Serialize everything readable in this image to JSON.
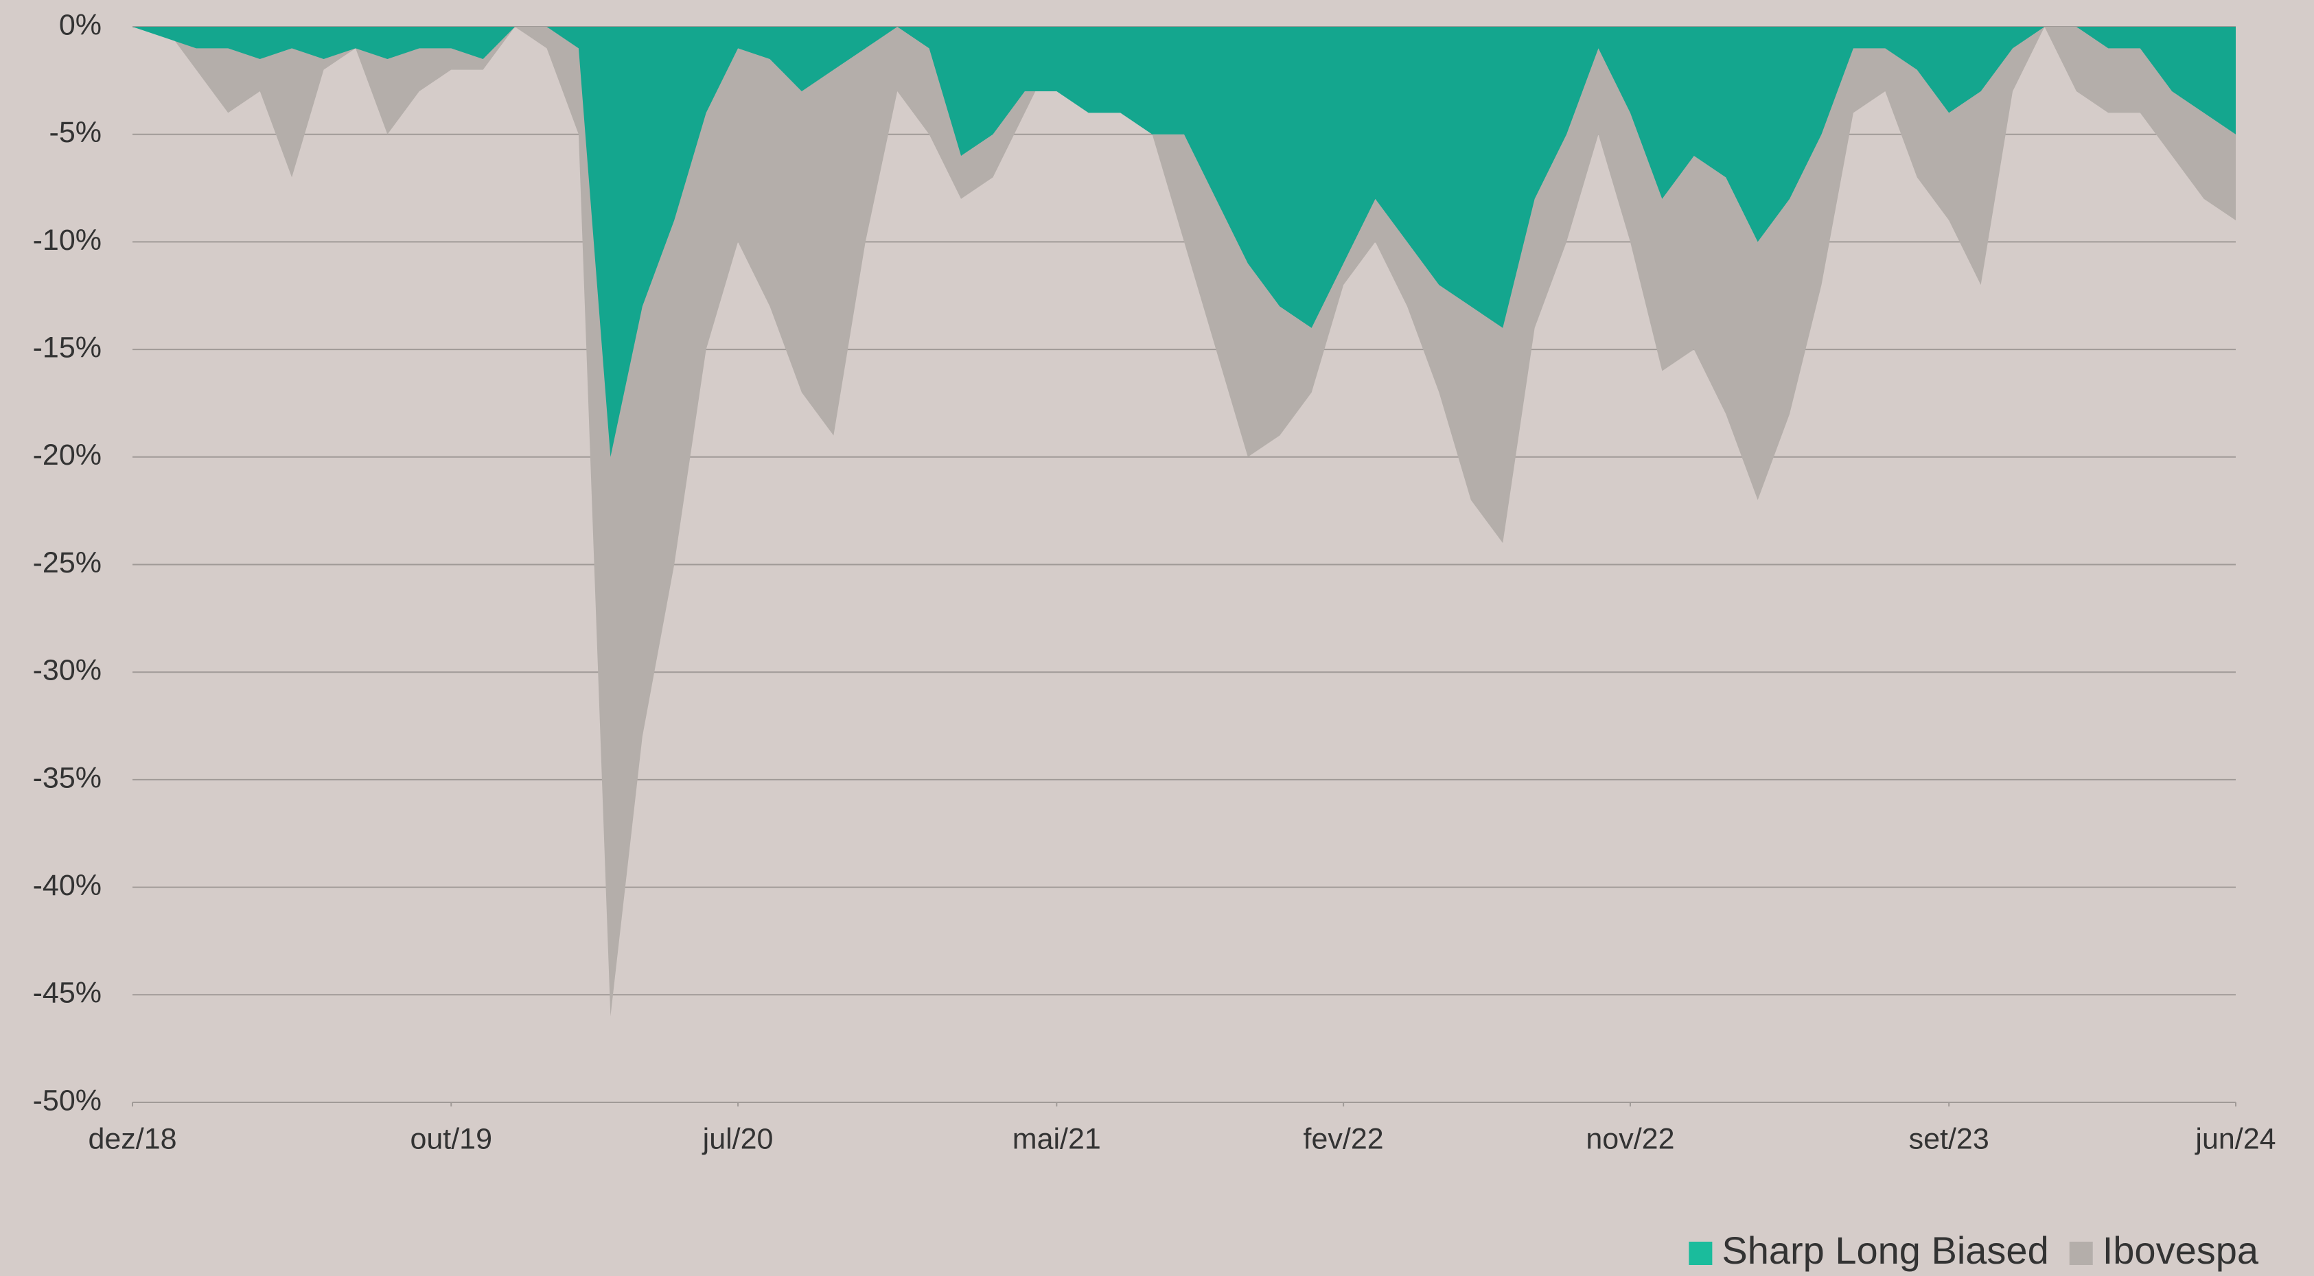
{
  "chart_data": {
    "type": "area",
    "x": [
      "2018-12",
      "2019-01",
      "2019-02",
      "2019-03",
      "2019-04",
      "2019-05",
      "2019-06",
      "2019-07",
      "2019-08",
      "2019-09",
      "2019-10",
      "2019-11",
      "2019-12",
      "2020-01",
      "2020-02",
      "2020-03",
      "2020-04",
      "2020-05",
      "2020-06",
      "2020-07",
      "2020-08",
      "2020-09",
      "2020-10",
      "2020-11",
      "2020-12",
      "2021-01",
      "2021-02",
      "2021-03",
      "2021-04",
      "2021-05",
      "2021-06",
      "2021-07",
      "2021-08",
      "2021-09",
      "2021-10",
      "2021-11",
      "2021-12",
      "2022-01",
      "2022-02",
      "2022-03",
      "2022-04",
      "2022-05",
      "2022-06",
      "2022-07",
      "2022-08",
      "2022-09",
      "2022-10",
      "2022-11",
      "2022-12",
      "2023-01",
      "2023-02",
      "2023-03",
      "2023-04",
      "2023-05",
      "2023-06",
      "2023-07",
      "2023-08",
      "2023-09",
      "2023-10",
      "2023-11",
      "2023-12",
      "2024-01",
      "2024-02",
      "2024-03",
      "2024-04",
      "2024-05",
      "2024-06"
    ],
    "series": [
      {
        "name": "Ibovespa",
        "color": "#b4aeaa",
        "legend_color": "#b4aeaa",
        "values": [
          0,
          0,
          -2,
          -4,
          -3,
          -7,
          -2,
          -1,
          -5,
          -3,
          -2,
          -2,
          0,
          -1,
          -5,
          -46,
          -33,
          -25,
          -15,
          -10,
          -13,
          -17,
          -19,
          -10,
          -3,
          -5,
          -8,
          -7,
          -4,
          -1,
          0,
          -3,
          -5,
          -10,
          -15,
          -20,
          -19,
          -17,
          -12,
          -10,
          -13,
          -17,
          -22,
          -24,
          -14,
          -10,
          -5,
          -10,
          -16,
          -15,
          -18,
          -22,
          -18,
          -12,
          -4,
          -3,
          -7,
          -9,
          -12,
          -3,
          0,
          -3,
          -4,
          -4,
          -6,
          -8,
          -9
        ]
      },
      {
        "name": "Sharp Long Biased",
        "color": "#14a68e",
        "legend_color": "#1abc9c",
        "values": [
          0,
          -0.5,
          -1,
          -1,
          -1.5,
          -1,
          -1.5,
          -1,
          -1.5,
          -1,
          -1,
          -1.5,
          0,
          0,
          -1,
          -20,
          -13,
          -9,
          -4,
          -1,
          -1.5,
          -3,
          -2,
          -1,
          0,
          -1,
          -6,
          -5,
          -3,
          -3,
          -4,
          -4,
          -5,
          -5,
          -8,
          -11,
          -13,
          -14,
          -11,
          -8,
          -10,
          -12,
          -13,
          -14,
          -8,
          -5,
          -1,
          -4,
          -8,
          -6,
          -7,
          -10,
          -8,
          -5,
          -1,
          -1,
          -2,
          -4,
          -3,
          -1,
          0,
          0,
          -1,
          -1,
          -3,
          -4,
          -5
        ]
      }
    ],
    "legend_order": [
      1,
      0
    ],
    "ylim": [
      -50,
      0
    ],
    "yticks": [
      {
        "value": 0,
        "label": "0%"
      },
      {
        "value": -5,
        "label": "-5%"
      },
      {
        "value": -10,
        "label": "-10%"
      },
      {
        "value": -15,
        "label": "-15%"
      },
      {
        "value": -20,
        "label": "-20%"
      },
      {
        "value": -25,
        "label": "-25%"
      },
      {
        "value": -30,
        "label": "-30%"
      },
      {
        "value": -35,
        "label": "-35%"
      },
      {
        "value": -40,
        "label": "-40%"
      },
      {
        "value": -45,
        "label": "-45%"
      },
      {
        "value": -50,
        "label": "-50%"
      }
    ],
    "xticks": [
      {
        "value": "2018-12",
        "label": "dez/18"
      },
      {
        "value": "2019-10",
        "label": "out/19"
      },
      {
        "value": "2020-07",
        "label": "jul/20"
      },
      {
        "value": "2021-05",
        "label": "mai/21"
      },
      {
        "value": "2022-02",
        "label": "fev/22"
      },
      {
        "value": "2022-11",
        "label": "nov/22"
      },
      {
        "value": "2023-09",
        "label": "set/23"
      },
      {
        "value": "2024-06",
        "label": "jun/24"
      }
    ],
    "grid": true,
    "legend": "bottom-right"
  }
}
